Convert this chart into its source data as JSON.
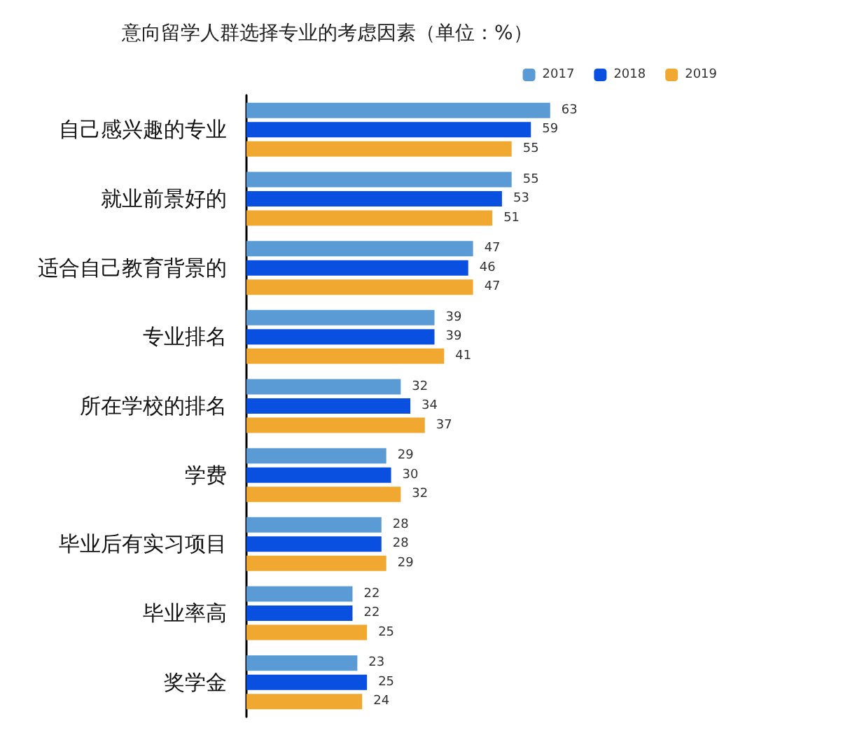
{
  "chart_data": {
    "type": "bar",
    "orientation": "horizontal",
    "title": "意向留学人群选择专业的考虑因素（单位：%）",
    "categories": [
      "自己感兴趣的专业",
      "就业前景好的",
      "适合自己教育背景的",
      "专业排名",
      "所在学校的排名",
      "学费",
      "毕业后有实习项目",
      "毕业率高",
      "奖学金"
    ],
    "series": [
      {
        "name": "2017",
        "color": "#5b9bd5",
        "values": [
          63,
          55,
          47,
          39,
          32,
          29,
          28,
          22,
          23
        ]
      },
      {
        "name": "2018",
        "color": "#0a50e0",
        "values": [
          59,
          53,
          46,
          39,
          34,
          30,
          28,
          22,
          25
        ]
      },
      {
        "name": "2019",
        "color": "#f0a830",
        "values": [
          55,
          51,
          47,
          41,
          37,
          32,
          29,
          25,
          24
        ]
      }
    ],
    "data_labels": true,
    "legend": "top right"
  }
}
